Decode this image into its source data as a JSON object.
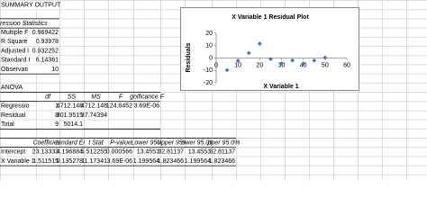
{
  "summary_title": "SUMMARY OUTPUT",
  "regression_statistics": {
    "title": "Regression Statistics",
    "rows": [
      [
        "Multiple F",
        "0.969422"
      ],
      [
        "R Square",
        "0.93978"
      ],
      [
        "Adjusted I",
        "0.932252"
      ],
      [
        "Standard I",
        "6.14361"
      ],
      [
        "Observati",
        "10"
      ]
    ]
  },
  "anova": {
    "title": "ANOVA",
    "header": [
      "df",
      "SS",
      "MS",
      "F",
      "gnificance F"
    ],
    "rows": [
      [
        "Regressio",
        "1",
        "4712.148",
        "4712.148",
        "124.8452",
        "3.69E-06"
      ],
      [
        "Residual",
        "8",
        "301.9515",
        "37.74394"
      ],
      [
        "Total",
        "9",
        "5014.1"
      ]
    ]
  },
  "coefficients": {
    "header": [
      "Coefficient",
      "tandard Err",
      "t Stat",
      "P-value",
      "Lower 95%",
      "Upper 95%",
      "ower 95.0%",
      "pper 95.0%"
    ],
    "rows": [
      [
        "Intercept",
        "23.13333",
        "4.196884",
        "5.512255",
        "0.000566",
        "13.4553",
        "32.81137",
        "13.4553",
        "32.81137"
      ],
      [
        "X Variable 1",
        "1.511515",
        "0.135278",
        "11.17341",
        "3.69E-06",
        "1.199564",
        "1.823466",
        "1.199564",
        "1.823466"
      ]
    ]
  },
  "chart_data": {
    "type": "scatter",
    "title": "X Variable 1  Residual Plot",
    "x_label": "X Variable 1",
    "y_label": "Residuals",
    "x": [
      5,
      10,
      15,
      20,
      25,
      30,
      35,
      40,
      45,
      50
    ],
    "values": [
      -9.7,
      -2.3,
      4.1,
      11.6,
      -0.8,
      -4.4,
      -1.9,
      -4.5,
      -2.0,
      0.4
    ],
    "color": "#4472c4",
    "xlim": [
      0,
      60
    ],
    "xticks": [
      0,
      10,
      20,
      30,
      40,
      50,
      60
    ],
    "ylim": [
      -20,
      20
    ],
    "yticks": [
      -20,
      -10,
      0,
      10,
      20
    ]
  }
}
